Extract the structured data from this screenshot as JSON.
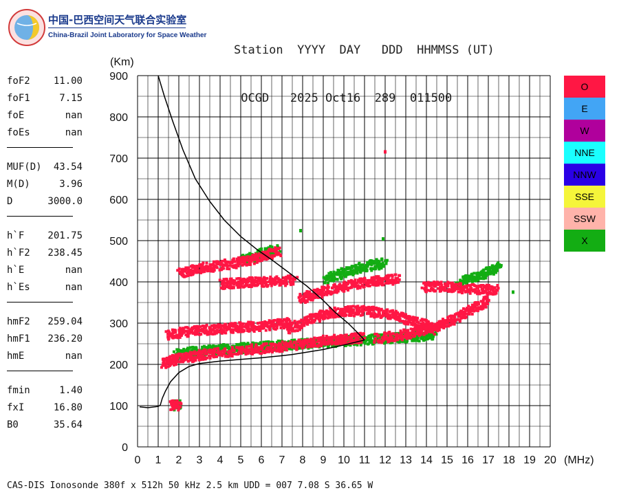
{
  "logo": {
    "cn_text": "中国-巴西空间天气联合实验室",
    "en_text": "China-Brazil Joint Laboratory for Space Weather"
  },
  "header": {
    "row1": "Station  YYYY  DAY   DDD  HHMMSS (UT)",
    "row2": " OCGD   2025 Oct16  289  011500"
  },
  "params": {
    "groups": [
      [
        {
          "label": "foF2",
          "value": "11.00"
        },
        {
          "label": "foF1",
          "value": "7.15"
        },
        {
          "label": "foE",
          "value": "nan"
        },
        {
          "label": "foEs",
          "value": "nan"
        }
      ],
      [
        {
          "label": "MUF(D)",
          "value": "43.54"
        },
        {
          "label": "M(D)",
          "value": "3.96"
        },
        {
          "label": "D",
          "value": "3000.0"
        }
      ],
      [
        {
          "label": "h`F",
          "value": "201.75"
        },
        {
          "label": "h`F2",
          "value": "238.45"
        },
        {
          "label": "h`E",
          "value": "nan"
        },
        {
          "label": "h`Es",
          "value": "nan"
        }
      ],
      [
        {
          "label": "hmF2",
          "value": "259.04"
        },
        {
          "label": "hmF1",
          "value": "236.20"
        },
        {
          "label": "hmE",
          "value": "nan"
        }
      ],
      [
        {
          "label": "fmin",
          "value": "1.40"
        },
        {
          "label": "fxI",
          "value": "16.80"
        },
        {
          "label": "B0",
          "value": "35.64"
        }
      ]
    ]
  },
  "legend": [
    {
      "label": "O",
      "color": "#ff1744"
    },
    {
      "label": "E",
      "color": "#42a5f5"
    },
    {
      "label": "W",
      "color": "#b0009c"
    },
    {
      "label": "NNE",
      "color": "#1affff"
    },
    {
      "label": "NNW",
      "color": "#2a00e6"
    },
    {
      "label": "SSE",
      "color": "#f5f53a"
    },
    {
      "label": "SSW",
      "color": "#ffb3aa"
    },
    {
      "label": "X",
      "color": "#13ad13"
    }
  ],
  "footer": "CAS-DIS Ionosonde 380f x 512h 50 kHz 2.5 km UDD = 007 7.08 S 36.65 W",
  "chart_data": {
    "type": "scatter",
    "xlabel": "(MHz)",
    "ylabel": "(Km)",
    "xlim": [
      0,
      20
    ],
    "ylim": [
      0,
      900
    ],
    "x_ticks": [
      "0",
      "1",
      "2",
      "3",
      "4",
      "5",
      "6",
      "7",
      "8",
      "9",
      "10",
      "11",
      "12",
      "13",
      "14",
      "15",
      "16",
      "17",
      "18",
      "19",
      "20"
    ],
    "y_ticks": [
      "0",
      "100",
      "200",
      "300",
      "400",
      "500",
      "600",
      "700",
      "800",
      "900"
    ],
    "grid": true,
    "colors": {
      "O": "#ff1744",
      "X": "#13ad13",
      "profile": "#000000"
    },
    "profile_curve": {
      "name": "electron density profile",
      "x": [
        0.1,
        0.5,
        1.0,
        1.1,
        1.2,
        1.35,
        1.6,
        2.0,
        2.5,
        3.0,
        4.0,
        5.0,
        6.0,
        7.0,
        7.5,
        8.0,
        9.0,
        10.0,
        10.5,
        11.0
      ],
      "y": [
        97,
        95,
        98,
        101,
        118,
        135,
        158,
        180,
        195,
        202,
        208,
        212,
        216,
        221,
        224,
        228,
        236,
        247,
        253,
        259
      ]
    },
    "topside_curve": {
      "name": "topside extrapolation",
      "x": [
        1.0,
        1.3,
        1.7,
        2.2,
        2.8,
        3.5,
        4.2,
        5.0,
        5.8,
        6.6,
        7.4,
        8.2,
        9.0,
        9.6,
        10.2,
        10.6,
        11.0
      ],
      "y": [
        900,
        850,
        790,
        720,
        650,
        595,
        550,
        510,
        478,
        450,
        420,
        390,
        355,
        325,
        300,
        280,
        259
      ]
    },
    "o_traces": [
      {
        "x": [
          1.2,
          1.6,
          2.0,
          2.6,
          3.2,
          4.0,
          4.8,
          5.6,
          6.4,
          7.2,
          8.0,
          8.6,
          9.2,
          9.8,
          10.4,
          10.9
        ],
        "y": [
          205,
          212,
          218,
          222,
          228,
          232,
          236,
          240,
          244,
          248,
          253,
          258,
          262,
          264,
          266,
          268
        ]
      },
      {
        "x": [
          1.4,
          2.0,
          2.6,
          3.2,
          3.8,
          4.4,
          5.0,
          5.6,
          6.2,
          6.8,
          7.4
        ],
        "y": [
          275,
          280,
          284,
          287,
          289,
          291,
          293,
          295,
          298,
          301,
          305
        ]
      },
      {
        "x": [
          2.0,
          2.6,
          3.2,
          3.8,
          4.4,
          5.0,
          5.6,
          6.2,
          6.8
        ],
        "y": [
          425,
          432,
          438,
          442,
          447,
          452,
          460,
          468,
          478
        ]
      },
      {
        "x": [
          4.0,
          4.6,
          5.2,
          5.8,
          6.4,
          7.0,
          7.6
        ],
        "y": [
          398,
          400,
          402,
          403,
          404,
          405,
          408
        ]
      },
      {
        "x": [
          7.2,
          7.8,
          8.4,
          9.0,
          9.6,
          10.2,
          10.8,
          11.4,
          12.0,
          12.6,
          13.2,
          13.8,
          14.4
        ],
        "y": [
          290,
          300,
          315,
          325,
          330,
          332,
          334,
          330,
          325,
          320,
          310,
          300,
          285
        ]
      },
      {
        "x": [
          11.5,
          12.2,
          12.8,
          13.4,
          14.0,
          14.6,
          15.2,
          15.8,
          16.4,
          17.0
        ],
        "y": [
          265,
          270,
          275,
          282,
          290,
          300,
          310,
          330,
          345,
          360
        ]
      },
      {
        "x": [
          13.8,
          14.4,
          15.0,
          15.6,
          16.2,
          16.8,
          17.4
        ],
        "y": [
          390,
          392,
          392,
          388,
          386,
          384,
          385
        ]
      },
      {
        "x": [
          7.8,
          8.4,
          9.0,
          9.6,
          10.2,
          10.8,
          11.4,
          12.0,
          12.6
        ],
        "y": [
          360,
          372,
          380,
          388,
          395,
          400,
          405,
          408,
          410
        ]
      },
      {
        "x": [
          1.6,
          2.0
        ],
        "y": [
          104,
          104
        ]
      }
    ],
    "x_traces": [
      {
        "x": [
          1.8,
          2.4,
          3.0,
          3.6,
          4.2,
          4.8,
          5.4,
          6.0,
          6.6,
          7.2,
          7.8,
          8.4,
          9.0,
          9.6,
          10.2,
          10.8,
          11.4,
          12.0,
          12.6,
          13.2,
          13.8,
          14.4
        ],
        "y": [
          228,
          232,
          235,
          238,
          240,
          242,
          244,
          246,
          248,
          250,
          252,
          254,
          256,
          258,
          260,
          262,
          264,
          266,
          268,
          270,
          272,
          274
        ]
      },
      {
        "x": [
          5.0,
          5.6,
          6.2,
          6.8
        ],
        "y": [
          455,
          465,
          475,
          482
        ]
      },
      {
        "x": [
          9.0,
          9.6,
          10.2,
          10.8,
          11.4,
          12.0
        ],
        "y": [
          410,
          420,
          430,
          438,
          444,
          450
        ]
      },
      {
        "x": [
          15.5,
          16.0,
          16.5,
          17.0,
          17.5
        ],
        "y": [
          400,
          410,
          420,
          430,
          440
        ]
      },
      {
        "x": [
          1.8,
          1.9
        ],
        "y": [
          104,
          104
        ]
      }
    ],
    "isolated_points": [
      {
        "x": 12.0,
        "y": 716,
        "series": "O"
      },
      {
        "x": 7.9,
        "y": 525,
        "series": "X"
      },
      {
        "x": 11.9,
        "y": 505,
        "series": "X"
      },
      {
        "x": 18.2,
        "y": 376,
        "series": "X"
      }
    ]
  }
}
